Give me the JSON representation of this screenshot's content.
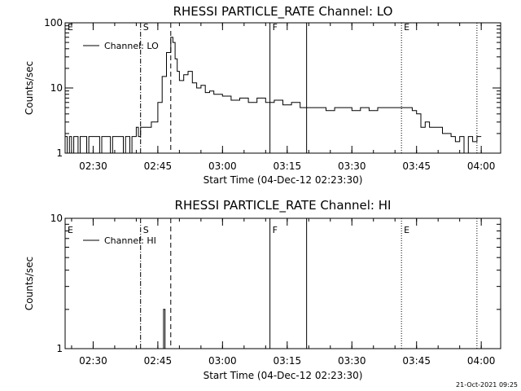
{
  "chart_data": [
    {
      "type": "line",
      "title": "RHESSI PARTICLE_RATE Channel: LO",
      "xlabel": "Start Time (04-Dec-12 02:23:30)",
      "ylabel": "Counts/sec",
      "yscale": "log",
      "xlim": [
        "02:23:30",
        "04:04:30"
      ],
      "ylim": [
        1,
        100
      ],
      "x_tick_labels": [
        "02:30",
        "02:45",
        "03:00",
        "03:15",
        "03:30",
        "03:45",
        "04:00"
      ],
      "y_tick_labels": [
        "1",
        "10",
        "100"
      ],
      "series": [
        {
          "name": "Channel: LO",
          "x": [
            "02:23:30",
            "02:24:00",
            "02:24:30",
            "02:25:00",
            "02:25:30",
            "02:26:00",
            "02:26:30",
            "02:27:00",
            "02:27:30",
            "02:28:00",
            "02:28:30",
            "02:29:00",
            "02:29:30",
            "02:30:00",
            "02:30:30",
            "02:31:00",
            "02:31:30",
            "02:32:00",
            "02:32:30",
            "02:33:00",
            "02:33:30",
            "02:34:00",
            "02:34:30",
            "02:35:00",
            "02:35:30",
            "02:36:00",
            "02:36:30",
            "02:37:00",
            "02:37:30",
            "02:38:00",
            "02:38:30",
            "02:39:00",
            "02:39:30",
            "02:40:00",
            "02:40:30",
            "02:41:00",
            "02:41:30",
            "02:42:00",
            "02:42:30",
            "02:43:00",
            "02:43:30",
            "02:44:00",
            "02:45:00",
            "02:46:00",
            "02:47:00",
            "02:48:00",
            "02:48:30",
            "02:49:00",
            "02:49:30",
            "02:50:00",
            "02:51:00",
            "02:52:00",
            "02:53:00",
            "02:54:00",
            "02:55:00",
            "02:56:00",
            "02:57:00",
            "02:58:00",
            "03:00:00",
            "03:02:00",
            "03:04:00",
            "03:06:00",
            "03:08:00",
            "03:10:00",
            "03:12:00",
            "03:14:00",
            "03:16:00",
            "03:18:00",
            "03:20:00",
            "03:22:00",
            "03:24:00",
            "03:26:00",
            "03:28:00",
            "03:30:00",
            "03:32:00",
            "03:34:00",
            "03:36:00",
            "03:38:00",
            "03:40:00",
            "03:41:00",
            "03:42:00",
            "03:43:00",
            "03:44:00",
            "03:45:00",
            "03:46:00",
            "03:47:00",
            "03:48:00",
            "03:49:00",
            "03:50:00",
            "03:51:00",
            "03:52:00",
            "03:53:00",
            "03:54:00",
            "03:55:00",
            "03:56:00",
            "03:57:00",
            "03:58:00",
            "03:59:00"
          ],
          "y": [
            1.8,
            1.0,
            1.8,
            1.0,
            1.8,
            1.8,
            1.0,
            1.8,
            1.8,
            1.8,
            1.0,
            1.8,
            1.8,
            1.8,
            1.8,
            1.8,
            1.0,
            1.8,
            1.8,
            1.8,
            1.8,
            1.0,
            1.8,
            1.8,
            1.8,
            1.8,
            1.8,
            1.0,
            1.8,
            1.8,
            1.0,
            1.8,
            1.8,
            2.5,
            1.8,
            2.5,
            2.5,
            2.5,
            2.5,
            2.5,
            3.0,
            3.0,
            6.0,
            15.0,
            35.0,
            60.0,
            50.0,
            28.0,
            18.0,
            13.0,
            16.0,
            18.0,
            12.0,
            10.0,
            11.0,
            8.5,
            9.0,
            8.0,
            7.5,
            6.5,
            7.0,
            6.0,
            7.0,
            6.0,
            6.5,
            5.5,
            6.0,
            5.0,
            5.0,
            5.0,
            4.5,
            5.0,
            5.0,
            4.5,
            5.0,
            4.5,
            5.0,
            5.0,
            5.0,
            5.0,
            5.0,
            5.0,
            4.5,
            4.0,
            2.5,
            3.0,
            2.5,
            2.5,
            2.5,
            2.0,
            2.0,
            1.8,
            1.5,
            1.8,
            1.0,
            1.8,
            1.5,
            1.8
          ]
        }
      ],
      "markers": [
        {
          "label": "E",
          "time": "02:23:30",
          "style": "none"
        },
        {
          "label": "S",
          "time": "02:41:00",
          "style": "dashdot"
        },
        {
          "label": "",
          "time": "02:48:00",
          "style": "dashed"
        },
        {
          "label": "F",
          "time": "03:11:00",
          "style": "solid"
        },
        {
          "label": "",
          "time": "03:19:30",
          "style": "solid"
        },
        {
          "label": "E",
          "time": "03:41:30",
          "style": "dotted"
        },
        {
          "label": "",
          "time": "03:59:00",
          "style": "dotted"
        }
      ]
    },
    {
      "type": "line",
      "title": "RHESSI PARTICLE_RATE Channel: HI",
      "xlabel": "Start Time (04-Dec-12 02:23:30)",
      "ylabel": "Counts/sec",
      "yscale": "log",
      "xlim": [
        "02:23:30",
        "04:04:30"
      ],
      "ylim": [
        1,
        10
      ],
      "x_tick_labels": [
        "02:30",
        "02:45",
        "03:00",
        "03:15",
        "03:30",
        "03:45",
        "04:00"
      ],
      "y_tick_labels": [
        "1",
        "10"
      ],
      "series": [
        {
          "name": "Channel: HI",
          "x": [
            "02:46:00",
            "02:46:20",
            "02:46:40",
            "02:47:00"
          ],
          "y": [
            1.0,
            2.0,
            1.0,
            1.0
          ]
        }
      ],
      "markers": [
        {
          "label": "E",
          "time": "02:23:30",
          "style": "none"
        },
        {
          "label": "S",
          "time": "02:41:00",
          "style": "dashdot"
        },
        {
          "label": "",
          "time": "02:48:00",
          "style": "dashed"
        },
        {
          "label": "F",
          "time": "03:11:00",
          "style": "solid"
        },
        {
          "label": "",
          "time": "03:19:30",
          "style": "solid"
        },
        {
          "label": "E",
          "time": "03:41:30",
          "style": "dotted"
        },
        {
          "label": "",
          "time": "03:59:00",
          "style": "dotted"
        }
      ]
    }
  ],
  "footer": {
    "timestamp": "21-Oct-2021 09:25"
  }
}
